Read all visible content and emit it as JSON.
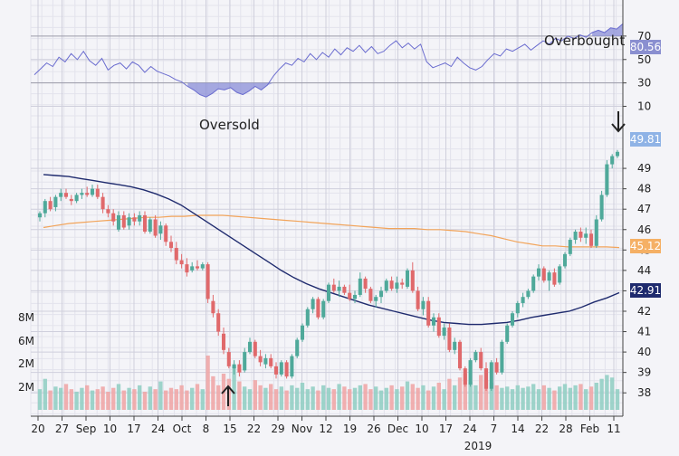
{
  "chart_data": {
    "type": "candlestick",
    "x_ticks": [
      "20",
      "27",
      "Sep",
      "10",
      "17",
      "24",
      "Oct",
      "8",
      "15",
      "22",
      "29",
      "Nov",
      "12",
      "19",
      "26",
      "Dec",
      "10",
      "17",
      "24",
      "7",
      "14",
      "22",
      "28",
      "Feb",
      "11"
    ],
    "year_label": "2019",
    "price_axis": {
      "ticks": [
        38,
        39,
        40,
        41,
        42,
        43,
        44,
        45,
        46,
        47,
        48,
        49
      ],
      "min": 37.3,
      "max": 50.6
    },
    "rsi_axis": {
      "ticks": [
        10,
        30,
        50,
        70
      ],
      "min": 5,
      "max": 90,
      "upper_line": 70,
      "lower_line": 30
    },
    "volume_axis": {
      "ticks": [
        "8M",
        "6M",
        "2M",
        "2M"
      ]
    },
    "annotations": {
      "overbought": "Overbought",
      "oversold": "Oversold"
    },
    "badges": {
      "rsi": "80.56",
      "price": "49.81",
      "ma_short": "45.12",
      "ma_long": "42.91"
    },
    "colors": {
      "up": "#4fa99a",
      "down": "#e0696b",
      "vol_up": "#93cfc4",
      "vol_down": "#f0a7a7",
      "rsi_line": "#6a6ccf",
      "rsi_fill": "#8b8fd8",
      "ma_short": "#f2a45a",
      "ma_long": "#1f2b6e",
      "badge_rsi": "#8a8fd0",
      "badge_price": "#8fb3e6",
      "badge_ma_short": "#f5b065",
      "badge_ma_long": "#1f2b6e"
    },
    "candles": [
      [
        46.6,
        46.9,
        46.4,
        46.8
      ],
      [
        46.8,
        47.5,
        46.6,
        47.4
      ],
      [
        47.4,
        47.6,
        46.9,
        47.0
      ],
      [
        47.1,
        47.7,
        46.9,
        47.6
      ],
      [
        47.6,
        48.0,
        47.4,
        47.8
      ],
      [
        47.8,
        48.0,
        47.5,
        47.6
      ],
      [
        47.5,
        47.7,
        47.2,
        47.4
      ],
      [
        47.4,
        47.8,
        47.3,
        47.7
      ],
      [
        47.7,
        48.0,
        47.5,
        47.8
      ],
      [
        47.8,
        48.1,
        47.6,
        47.7
      ],
      [
        47.7,
        48.2,
        47.6,
        48.0
      ],
      [
        48.0,
        48.2,
        47.5,
        47.6
      ],
      [
        47.6,
        47.8,
        46.8,
        47.0
      ],
      [
        47.0,
        47.2,
        46.6,
        46.8
      ],
      [
        46.8,
        47.0,
        46.2,
        46.4
      ],
      [
        46.0,
        46.9,
        45.9,
        46.7
      ],
      [
        46.7,
        46.9,
        46.0,
        46.1
      ],
      [
        46.2,
        46.8,
        46.0,
        46.6
      ],
      [
        46.6,
        46.8,
        46.2,
        46.4
      ],
      [
        46.4,
        46.9,
        46.2,
        46.7
      ],
      [
        46.7,
        46.9,
        45.8,
        45.9
      ],
      [
        45.9,
        46.6,
        45.8,
        46.5
      ],
      [
        46.5,
        46.7,
        45.6,
        45.7
      ],
      [
        45.8,
        46.4,
        45.5,
        46.2
      ],
      [
        46.2,
        46.3,
        45.2,
        45.4
      ],
      [
        45.4,
        45.7,
        44.9,
        45.1
      ],
      [
        45.1,
        45.4,
        44.3,
        44.5
      ],
      [
        44.5,
        44.8,
        44.1,
        44.3
      ],
      [
        44.3,
        44.6,
        43.7,
        43.9
      ],
      [
        44.0,
        44.4,
        43.9,
        44.2
      ],
      [
        44.2,
        44.5,
        44.0,
        44.1
      ],
      [
        44.1,
        44.4,
        44.0,
        44.3
      ],
      [
        44.3,
        44.4,
        42.4,
        42.6
      ],
      [
        42.5,
        42.8,
        41.7,
        41.9
      ],
      [
        41.9,
        42.1,
        40.8,
        41.0
      ],
      [
        40.9,
        41.2,
        39.9,
        40.1
      ],
      [
        40.0,
        40.2,
        39.2,
        39.3
      ],
      [
        39.2,
        39.6,
        38.9,
        39.4
      ],
      [
        39.4,
        39.6,
        38.8,
        39.0
      ],
      [
        39.1,
        40.2,
        39.0,
        40.0
      ],
      [
        40.0,
        40.7,
        39.9,
        40.5
      ],
      [
        40.5,
        40.6,
        39.7,
        39.8
      ],
      [
        39.8,
        40.1,
        39.3,
        39.5
      ],
      [
        39.4,
        39.9,
        39.2,
        39.7
      ],
      [
        39.7,
        39.9,
        39.2,
        39.3
      ],
      [
        39.3,
        39.5,
        38.7,
        38.9
      ],
      [
        38.9,
        39.6,
        38.8,
        39.5
      ],
      [
        39.5,
        39.6,
        38.7,
        38.8
      ],
      [
        38.8,
        39.9,
        38.7,
        39.8
      ],
      [
        39.8,
        40.7,
        39.7,
        40.6
      ],
      [
        40.6,
        41.4,
        40.5,
        41.3
      ],
      [
        41.3,
        42.2,
        41.2,
        42.1
      ],
      [
        42.1,
        42.7,
        41.9,
        42.6
      ],
      [
        42.6,
        42.7,
        41.6,
        41.7
      ],
      [
        41.7,
        42.6,
        41.6,
        42.5
      ],
      [
        42.5,
        43.4,
        42.4,
        43.3
      ],
      [
        43.3,
        43.6,
        42.9,
        43.0
      ],
      [
        43.0,
        43.5,
        42.7,
        43.2
      ],
      [
        43.2,
        43.3,
        42.8,
        42.9
      ],
      [
        42.9,
        43.3,
        42.5,
        42.6
      ],
      [
        42.6,
        43.0,
        42.4,
        42.8
      ],
      [
        42.8,
        43.9,
        42.7,
        43.6
      ],
      [
        43.6,
        43.7,
        42.9,
        43.1
      ],
      [
        43.1,
        43.2,
        42.4,
        42.5
      ],
      [
        42.5,
        42.8,
        42.2,
        42.7
      ],
      [
        42.7,
        43.2,
        42.4,
        43.0
      ],
      [
        43.0,
        43.6,
        42.9,
        43.5
      ],
      [
        43.5,
        43.7,
        43.0,
        43.1
      ],
      [
        43.1,
        43.7,
        42.9,
        43.4
      ],
      [
        43.4,
        43.6,
        43.1,
        43.3
      ],
      [
        43.2,
        44.1,
        43.1,
        44.0
      ],
      [
        44.0,
        44.4,
        42.9,
        43.0
      ],
      [
        43.0,
        43.2,
        42.0,
        42.1
      ],
      [
        42.1,
        42.7,
        41.8,
        42.5
      ],
      [
        42.5,
        42.7,
        41.2,
        41.3
      ],
      [
        41.3,
        41.9,
        41.0,
        41.7
      ],
      [
        41.7,
        41.9,
        40.7,
        40.8
      ],
      [
        40.8,
        41.4,
        40.6,
        41.2
      ],
      [
        41.2,
        41.4,
        40.0,
        40.1
      ],
      [
        40.1,
        40.7,
        39.9,
        40.5
      ],
      [
        40.5,
        40.6,
        39.1,
        39.2
      ],
      [
        39.2,
        39.3,
        38.3,
        38.4
      ],
      [
        38.4,
        39.7,
        38.3,
        39.6
      ],
      [
        39.6,
        40.1,
        39.5,
        40.0
      ],
      [
        40.0,
        40.2,
        39.1,
        39.2
      ],
      [
        39.2,
        39.5,
        38.1,
        38.2
      ],
      [
        38.2,
        39.6,
        38.1,
        39.5
      ],
      [
        39.5,
        39.7,
        38.9,
        39.0
      ],
      [
        39.0,
        40.6,
        38.9,
        40.5
      ],
      [
        40.5,
        41.4,
        40.4,
        41.3
      ],
      [
        41.3,
        42.0,
        41.2,
        41.9
      ],
      [
        41.9,
        42.5,
        41.7,
        42.4
      ],
      [
        42.4,
        42.9,
        42.2,
        42.7
      ],
      [
        42.7,
        43.1,
        42.6,
        43.0
      ],
      [
        43.0,
        43.8,
        42.9,
        43.7
      ],
      [
        43.7,
        44.3,
        43.5,
        44.1
      ],
      [
        44.1,
        44.2,
        43.4,
        43.5
      ],
      [
        43.5,
        44.0,
        43.0,
        43.9
      ],
      [
        43.9,
        44.1,
        43.2,
        43.3
      ],
      [
        43.4,
        44.3,
        43.3,
        44.2
      ],
      [
        44.2,
        44.9,
        44.1,
        44.8
      ],
      [
        44.8,
        45.6,
        44.7,
        45.5
      ],
      [
        45.5,
        46.0,
        45.3,
        45.9
      ],
      [
        45.9,
        46.1,
        45.4,
        45.6
      ],
      [
        45.6,
        46.1,
        45.3,
        45.8
      ],
      [
        45.8,
        46.0,
        45.1,
        45.2
      ],
      [
        45.2,
        46.7,
        45.1,
        46.5
      ],
      [
        46.5,
        47.9,
        46.4,
        47.7
      ],
      [
        47.7,
        49.4,
        47.6,
        49.2
      ],
      [
        49.2,
        49.7,
        49.0,
        49.6
      ],
      [
        49.6,
        49.9,
        49.5,
        49.81
      ]
    ],
    "ma_short_values": [
      46.1,
      46.2,
      46.3,
      46.35,
      46.4,
      46.45,
      46.5,
      46.55,
      46.6,
      46.6,
      46.65,
      46.65,
      46.7,
      46.7,
      46.7,
      46.65,
      46.6,
      46.55,
      46.5,
      46.45,
      46.4,
      46.35,
      46.3,
      46.25,
      46.2,
      46.15,
      46.1,
      46.05,
      46.05,
      46.05,
      46.0,
      46.0,
      45.95,
      45.9,
      45.8,
      45.7,
      45.55,
      45.4,
      45.3,
      45.2,
      45.2,
      45.15,
      45.15,
      45.15,
      45.15,
      45.12
    ],
    "ma_long_values": [
      48.7,
      48.65,
      48.6,
      48.5,
      48.4,
      48.3,
      48.2,
      48.1,
      47.95,
      47.75,
      47.5,
      47.2,
      46.8,
      46.4,
      46.0,
      45.6,
      45.2,
      44.8,
      44.4,
      44.0,
      43.65,
      43.35,
      43.1,
      42.9,
      42.7,
      42.5,
      42.3,
      42.15,
      42.0,
      41.85,
      41.7,
      41.55,
      41.45,
      41.4,
      41.35,
      41.35,
      41.4,
      41.45,
      41.55,
      41.7,
      41.8,
      41.9,
      42.0,
      42.2,
      42.45,
      42.65,
      42.91
    ],
    "rsi_values": [
      37,
      42,
      47,
      44,
      52,
      48,
      55,
      50,
      57,
      49,
      45,
      51,
      41,
      45,
      47,
      42,
      48,
      45,
      39,
      44,
      40,
      38,
      36,
      33,
      31,
      27,
      24,
      20,
      18,
      21,
      25,
      24,
      26,
      22,
      20,
      23,
      27,
      24,
      28,
      36,
      42,
      47,
      45,
      51,
      48,
      55,
      50,
      56,
      52,
      59,
      54,
      60,
      57,
      62,
      56,
      61,
      55,
      57,
      62,
      66,
      60,
      64,
      59,
      63,
      48,
      43,
      45,
      47,
      44,
      52,
      47,
      43,
      41,
      44,
      50,
      55,
      53,
      59,
      57,
      60,
      63,
      58,
      62,
      66,
      63,
      68,
      66,
      70,
      68,
      71,
      69,
      73,
      75,
      73,
      77,
      76,
      80.56
    ],
    "volumes": [
      1.6,
      2.4,
      1.5,
      1.8,
      1.7,
      2.0,
      1.6,
      1.4,
      1.7,
      1.9,
      1.5,
      1.6,
      1.8,
      1.4,
      1.7,
      2.0,
      1.5,
      1.7,
      1.6,
      1.9,
      1.4,
      1.8,
      1.6,
      2.2,
      1.5,
      1.7,
      1.6,
      1.9,
      1.5,
      1.7,
      2.0,
      1.6,
      4.2,
      2.6,
      1.9,
      2.8,
      2.4,
      3.4,
      2.2,
      1.8,
      1.6,
      2.3,
      1.9,
      1.7,
      2.0,
      1.6,
      1.8,
      1.5,
      1.9,
      1.7,
      2.1,
      1.6,
      1.8,
      1.5,
      1.9,
      1.7,
      1.6,
      2.0,
      1.8,
      1.6,
      1.7,
      1.9,
      2.0,
      1.6,
      1.8,
      1.5,
      1.7,
      1.9,
      1.6,
      1.8,
      2.2,
      2.0,
      1.7,
      1.9,
      1.5,
      1.8,
      2.1,
      1.6,
      2.4,
      1.9,
      2.5,
      2.8,
      2.2,
      1.9,
      2.7,
      2.3,
      2.1,
      1.9,
      1.7,
      1.8,
      1.6,
      1.9,
      1.7,
      1.8,
      2.0,
      1.6,
      1.9,
      1.7,
      1.5,
      1.8,
      2.0,
      1.7,
      1.9,
      2.0,
      1.6,
      1.8,
      2.1,
      2.4,
      2.7,
      2.5
    ]
  }
}
